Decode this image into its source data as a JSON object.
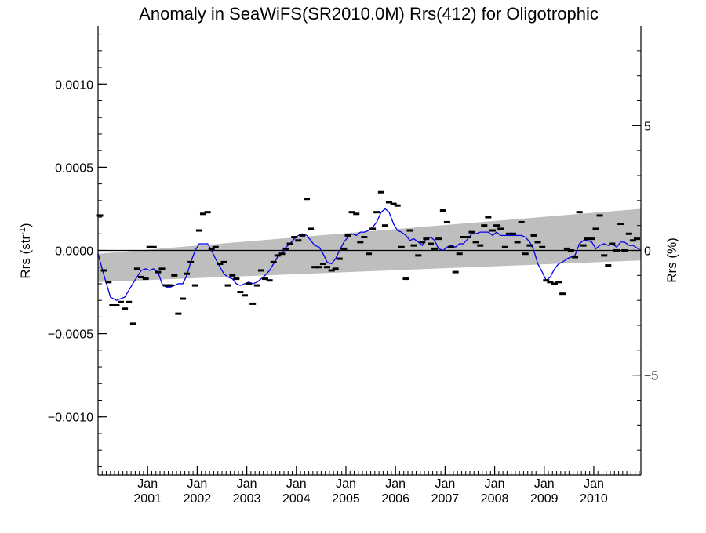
{
  "chart_data": {
    "type": "scatter",
    "title": "Anomaly in SeaWiFS(SR2010.0M) Rrs(412) for Oligotrophic",
    "ylabel_left": {
      "main": "Rrs (str",
      "sup": "-1",
      "close": ")"
    },
    "ylabel_right": "Rrs (%)",
    "xlim": [
      2000.0,
      2010.95
    ],
    "ylim_left": [
      -0.00135,
      0.00135
    ],
    "ylim_right": [
      -9.0,
      9.0
    ],
    "x_ticks": [
      {
        "x": 2001.0,
        "line1": "Jan",
        "line2": "2001"
      },
      {
        "x": 2002.0,
        "line1": "Jan",
        "line2": "2002"
      },
      {
        "x": 2003.0,
        "line1": "Jan",
        "line2": "2003"
      },
      {
        "x": 2004.0,
        "line1": "Jan",
        "line2": "2004"
      },
      {
        "x": 2005.0,
        "line1": "Jan",
        "line2": "2005"
      },
      {
        "x": 2006.0,
        "line1": "Jan",
        "line2": "2006"
      },
      {
        "x": 2007.0,
        "line1": "Jan",
        "line2": "2007"
      },
      {
        "x": 2008.0,
        "line1": "Jan",
        "line2": "2008"
      },
      {
        "x": 2009.0,
        "line1": "Jan",
        "line2": "2009"
      },
      {
        "x": 2010.0,
        "line1": "Jan",
        "line2": "2010"
      }
    ],
    "y_ticks_left": [
      {
        "v": 0.001,
        "label": "0.0010"
      },
      {
        "v": 0.0005,
        "label": "0.0005"
      },
      {
        "v": 0.0,
        "label": "0.0000"
      },
      {
        "v": -0.0005,
        "label": "−0.0005"
      },
      {
        "v": -0.001,
        "label": "−0.0010"
      }
    ],
    "y_ticks_right": [
      {
        "v": 5,
        "label": "5"
      },
      {
        "v": 0,
        "label": "0"
      },
      {
        "v": -5,
        "label": "−5"
      }
    ],
    "zero_line": 0.0,
    "uncertainty_band": {
      "x": [
        2000.0,
        2010.95
      ],
      "upper": [
        -2e-05,
        0.00025
      ],
      "lower": [
        -0.00019,
        -6e-05
      ],
      "color": "#bebebe"
    },
    "series": [
      {
        "kind": "monthly_anomaly_markers",
        "color": "#000000",
        "points": [
          [
            2000.04,
            0.00021
          ],
          [
            2000.12,
            -0.00012
          ],
          [
            2000.21,
            -0.00019
          ],
          [
            2000.29,
            -0.00033
          ],
          [
            2000.37,
            -0.00033
          ],
          [
            2000.46,
            -0.00031
          ],
          [
            2000.54,
            -0.00035
          ],
          [
            2000.62,
            -0.00031
          ],
          [
            2000.71,
            -0.00044
          ],
          [
            2000.79,
            -0.00011
          ],
          [
            2000.87,
            -0.00016
          ],
          [
            2000.96,
            -0.00017
          ],
          [
            2001.04,
            2e-05
          ],
          [
            2001.12,
            2e-05
          ],
          [
            2001.21,
            -0.00013
          ],
          [
            2001.29,
            -0.00011
          ],
          [
            2001.37,
            -0.00021
          ],
          [
            2001.46,
            -0.00021
          ],
          [
            2001.54,
            -0.00015
          ],
          [
            2001.62,
            -0.00038
          ],
          [
            2001.71,
            -0.00029
          ],
          [
            2001.79,
            -0.00014
          ],
          [
            2001.87,
            -7e-05
          ],
          [
            2001.96,
            -0.00021
          ],
          [
            2002.04,
            0.00012
          ],
          [
            2002.12,
            0.00022
          ],
          [
            2002.21,
            0.00023
          ],
          [
            2002.29,
            1e-05
          ],
          [
            2002.37,
            2e-05
          ],
          [
            2002.46,
            -8e-05
          ],
          [
            2002.54,
            -7e-05
          ],
          [
            2002.62,
            -0.00021
          ],
          [
            2002.71,
            -0.00015
          ],
          [
            2002.79,
            -0.00017
          ],
          [
            2002.87,
            -0.00025
          ],
          [
            2002.96,
            -0.00027
          ],
          [
            2003.04,
            -0.0002
          ],
          [
            2003.12,
            -0.00032
          ],
          [
            2003.21,
            -0.00021
          ],
          [
            2003.29,
            -0.00012
          ],
          [
            2003.37,
            -0.00017
          ],
          [
            2003.46,
            -0.00018
          ],
          [
            2003.54,
            -7e-05
          ],
          [
            2003.62,
            -3e-05
          ],
          [
            2003.71,
            -2e-05
          ],
          [
            2003.79,
            1e-05
          ],
          [
            2003.87,
            4e-05
          ],
          [
            2003.96,
            8e-05
          ],
          [
            2004.04,
            6e-05
          ],
          [
            2004.12,
            9e-05
          ],
          [
            2004.21,
            0.00031
          ],
          [
            2004.29,
            0.00013
          ],
          [
            2004.37,
            -0.0001
          ],
          [
            2004.46,
            -0.0001
          ],
          [
            2004.54,
            -8e-05
          ],
          [
            2004.62,
            -0.0001
          ],
          [
            2004.71,
            -0.00012
          ],
          [
            2004.79,
            -0.00011
          ],
          [
            2004.87,
            -5e-05
          ],
          [
            2004.96,
            1e-05
          ],
          [
            2005.04,
            9e-05
          ],
          [
            2005.12,
            0.00023
          ],
          [
            2005.21,
            0.00022
          ],
          [
            2005.29,
            5e-05
          ],
          [
            2005.37,
            8e-05
          ],
          [
            2005.46,
            -2e-05
          ],
          [
            2005.54,
            0.00013
          ],
          [
            2005.62,
            0.00023
          ],
          [
            2005.71,
            0.00035
          ],
          [
            2005.79,
            0.00015
          ],
          [
            2005.87,
            0.00029
          ],
          [
            2005.96,
            0.00028
          ],
          [
            2006.04,
            0.00027
          ],
          [
            2006.12,
            2e-05
          ],
          [
            2006.21,
            -0.00017
          ],
          [
            2006.29,
            0.00012
          ],
          [
            2006.37,
            3e-05
          ],
          [
            2006.46,
            -3e-05
          ],
          [
            2006.54,
            5e-05
          ],
          [
            2006.62,
            7e-05
          ],
          [
            2006.71,
            4e-05
          ],
          [
            2006.79,
            1e-05
          ],
          [
            2006.87,
            7e-05
          ],
          [
            2006.96,
            0.00024
          ],
          [
            2007.04,
            0.00017
          ],
          [
            2007.12,
            2e-05
          ],
          [
            2007.21,
            -0.00013
          ],
          [
            2007.29,
            -2e-05
          ],
          [
            2007.37,
            8e-05
          ],
          [
            2007.46,
            8e-05
          ],
          [
            2007.54,
            0.00011
          ],
          [
            2007.62,
            5e-05
          ],
          [
            2007.71,
            3e-05
          ],
          [
            2007.79,
            0.00015
          ],
          [
            2007.87,
            0.0002
          ],
          [
            2007.96,
            0.00012
          ],
          [
            2008.04,
            0.00015
          ],
          [
            2008.12,
            0.00013
          ],
          [
            2008.21,
            2e-05
          ],
          [
            2008.29,
            0.0001
          ],
          [
            2008.37,
            0.0001
          ],
          [
            2008.46,
            5e-05
          ],
          [
            2008.54,
            0.00017
          ],
          [
            2008.62,
            -2e-05
          ],
          [
            2008.71,
            3e-05
          ],
          [
            2008.79,
            9e-05
          ],
          [
            2008.87,
            5e-05
          ],
          [
            2008.96,
            2e-05
          ],
          [
            2009.04,
            -0.00018
          ],
          [
            2009.12,
            -0.00019
          ],
          [
            2009.21,
            -0.0002
          ],
          [
            2009.29,
            -0.00019
          ],
          [
            2009.37,
            -0.00026
          ],
          [
            2009.46,
            1e-05
          ],
          [
            2009.54,
            0.0
          ],
          [
            2009.62,
            -4e-05
          ],
          [
            2009.71,
            0.00023
          ],
          [
            2009.79,
            3e-05
          ],
          [
            2009.87,
            7e-05
          ],
          [
            2009.96,
            7e-05
          ],
          [
            2010.04,
            0.00013
          ],
          [
            2010.12,
            0.00021
          ],
          [
            2010.21,
            -3e-05
          ],
          [
            2010.29,
            -9e-05
          ],
          [
            2010.37,
            4e-05
          ],
          [
            2010.46,
            0.0
          ],
          [
            2010.54,
            0.00016
          ],
          [
            2010.62,
            0.0
          ],
          [
            2010.71,
            0.0001
          ],
          [
            2010.79,
            6e-05
          ],
          [
            2010.87,
            7e-05
          ]
        ]
      },
      {
        "kind": "smoothed_anomaly_line",
        "color": "#0000ee",
        "points": [
          [
            2000.0,
            -2e-05
          ],
          [
            2000.12,
            -0.00015
          ],
          [
            2000.25,
            -0.00028
          ],
          [
            2000.37,
            -0.0003
          ],
          [
            2000.54,
            -0.00028
          ],
          [
            2000.7,
            -0.0002
          ],
          [
            2000.87,
            -0.00012
          ],
          [
            2000.96,
            -0.00011
          ],
          [
            2001.04,
            -0.00012
          ],
          [
            2001.12,
            -0.00011
          ],
          [
            2001.21,
            -0.00013
          ],
          [
            2001.29,
            -0.0002
          ],
          [
            2001.37,
            -0.00022
          ],
          [
            2001.46,
            -0.00022
          ],
          [
            2001.54,
            -0.00021
          ],
          [
            2001.62,
            -0.0002
          ],
          [
            2001.71,
            -0.0002
          ],
          [
            2001.79,
            -0.00015
          ],
          [
            2001.87,
            -7e-05
          ],
          [
            2001.96,
            0.0
          ],
          [
            2002.04,
            4e-05
          ],
          [
            2002.12,
            4e-05
          ],
          [
            2002.21,
            4e-05
          ],
          [
            2002.29,
            0.0
          ],
          [
            2002.37,
            -5e-05
          ],
          [
            2002.46,
            -0.0001
          ],
          [
            2002.54,
            -0.00014
          ],
          [
            2002.62,
            -0.00016
          ],
          [
            2002.71,
            -0.00017
          ],
          [
            2002.79,
            -0.0002
          ],
          [
            2002.87,
            -0.00021
          ],
          [
            2002.96,
            -0.0002
          ],
          [
            2003.04,
            -0.00019
          ],
          [
            2003.12,
            -0.0002
          ],
          [
            2003.21,
            -0.00019
          ],
          [
            2003.29,
            -0.00017
          ],
          [
            2003.37,
            -0.00015
          ],
          [
            2003.46,
            -0.00012
          ],
          [
            2003.54,
            -8e-05
          ],
          [
            2003.62,
            -4e-05
          ],
          [
            2003.71,
            -2e-05
          ],
          [
            2003.79,
            2e-05
          ],
          [
            2003.87,
            4e-05
          ],
          [
            2003.96,
            7e-05
          ],
          [
            2004.04,
            9e-05
          ],
          [
            2004.12,
            0.0001
          ],
          [
            2004.21,
            9e-05
          ],
          [
            2004.29,
            6e-05
          ],
          [
            2004.37,
            3e-05
          ],
          [
            2004.46,
            2e-05
          ],
          [
            2004.54,
            -2e-05
          ],
          [
            2004.62,
            -7e-05
          ],
          [
            2004.71,
            -8e-05
          ],
          [
            2004.79,
            -5e-05
          ],
          [
            2004.87,
            -0.0
          ],
          [
            2004.96,
            5e-05
          ],
          [
            2005.04,
            8e-05
          ],
          [
            2005.12,
            0.0001
          ],
          [
            2005.21,
            9e-05
          ],
          [
            2005.29,
            0.00011
          ],
          [
            2005.37,
            0.00011
          ],
          [
            2005.46,
            0.00012
          ],
          [
            2005.54,
            0.00014
          ],
          [
            2005.62,
            0.00017
          ],
          [
            2005.71,
            0.00023
          ],
          [
            2005.79,
            0.00025
          ],
          [
            2005.87,
            0.00023
          ],
          [
            2005.96,
            0.00016
          ],
          [
            2006.04,
            0.00012
          ],
          [
            2006.12,
            0.00011
          ],
          [
            2006.21,
            9e-05
          ],
          [
            2006.29,
            6e-05
          ],
          [
            2006.37,
            7e-05
          ],
          [
            2006.46,
            5e-05
          ],
          [
            2006.54,
            3e-05
          ],
          [
            2006.62,
            7e-05
          ],
          [
            2006.71,
            8e-05
          ],
          [
            2006.79,
            6e-05
          ],
          [
            2006.87,
            1e-05
          ],
          [
            2006.96,
            -0.0
          ],
          [
            2007.04,
            2e-05
          ],
          [
            2007.12,
            3e-05
          ],
          [
            2007.21,
            2e-05
          ],
          [
            2007.29,
            4e-05
          ],
          [
            2007.37,
            4e-05
          ],
          [
            2007.46,
            7e-05
          ],
          [
            2007.54,
            0.0001
          ],
          [
            2007.62,
            0.0001
          ],
          [
            2007.71,
            0.00011
          ],
          [
            2007.79,
            0.00011
          ],
          [
            2007.87,
            0.00011
          ],
          [
            2007.96,
            9e-05
          ],
          [
            2008.04,
            0.00011
          ],
          [
            2008.12,
            9e-05
          ],
          [
            2008.21,
            9e-05
          ],
          [
            2008.29,
            9e-05
          ],
          [
            2008.37,
            9e-05
          ],
          [
            2008.46,
            9e-05
          ],
          [
            2008.54,
            9e-05
          ],
          [
            2008.62,
            8e-05
          ],
          [
            2008.71,
            5e-05
          ],
          [
            2008.79,
            0.0
          ],
          [
            2008.87,
            -8e-05
          ],
          [
            2008.96,
            -0.00013
          ],
          [
            2009.04,
            -0.00018
          ],
          [
            2009.12,
            -0.00016
          ],
          [
            2009.21,
            -0.00011
          ],
          [
            2009.29,
            -8e-05
          ],
          [
            2009.37,
            -7e-05
          ],
          [
            2009.46,
            -5e-05
          ],
          [
            2009.54,
            -4e-05
          ],
          [
            2009.62,
            -3e-05
          ],
          [
            2009.71,
            4e-05
          ],
          [
            2009.79,
            6e-05
          ],
          [
            2009.87,
            6e-05
          ],
          [
            2009.96,
            5e-05
          ],
          [
            2010.04,
            1e-05
          ],
          [
            2010.12,
            3e-05
          ],
          [
            2010.21,
            4e-05
          ],
          [
            2010.29,
            3e-05
          ],
          [
            2010.37,
            4e-05
          ],
          [
            2010.46,
            2e-05
          ],
          [
            2010.54,
            5e-05
          ],
          [
            2010.62,
            5e-05
          ],
          [
            2010.71,
            3e-05
          ],
          [
            2010.79,
            3e-05
          ],
          [
            2010.95,
            0.0
          ]
        ]
      }
    ],
    "grid": false,
    "legend": "none"
  }
}
